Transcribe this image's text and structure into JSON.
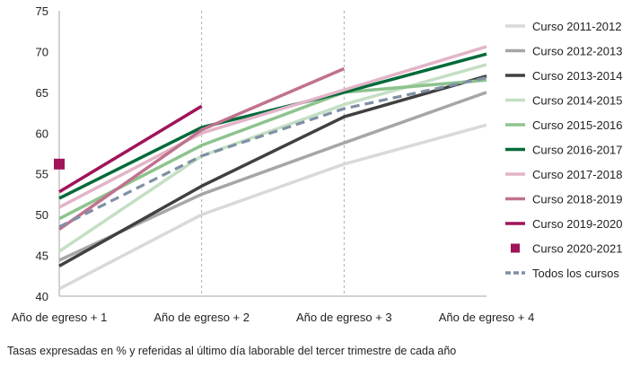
{
  "chart_data": {
    "type": "line",
    "categories": [
      "Año de egreso + 1",
      "Año de egreso + 2",
      "Año de egreso + 3",
      "Año de egreso + 4"
    ],
    "ylim": [
      40,
      75
    ],
    "yticks": [
      40,
      45,
      50,
      55,
      60,
      65,
      70,
      75
    ],
    "grid": "vertical dashed",
    "legend_position": "right",
    "note": "Tasas expresadas en % y referidas al último día laborable del tercer trimestre de cada año",
    "series": [
      {
        "name": "Curso 2011-2012",
        "color": "#d9d9d9",
        "style": "line",
        "values": [
          40.9,
          50.0,
          56.2,
          61.0
        ]
      },
      {
        "name": "Curso 2012-2013",
        "color": "#a6a6a6",
        "style": "line",
        "values": [
          44.4,
          52.5,
          58.8,
          65.0
        ]
      },
      {
        "name": "Curso 2013-2014",
        "color": "#404040",
        "style": "line",
        "values": [
          43.7,
          53.5,
          62.0,
          67.0
        ]
      },
      {
        "name": "Curso 2014-2015",
        "color": "#c4dfc4",
        "style": "line",
        "values": [
          45.5,
          57.2,
          63.5,
          68.4
        ]
      },
      {
        "name": "Curso 2015-2016",
        "color": "#8ec38e",
        "style": "line",
        "values": [
          49.5,
          58.5,
          65.0,
          66.5
        ]
      },
      {
        "name": "Curso 2016-2017",
        "color": "#006a3a",
        "style": "line",
        "values": [
          52.0,
          60.7,
          65.0,
          69.7
        ]
      },
      {
        "name": "Curso 2017-2018",
        "color": "#e3b4c8",
        "style": "line",
        "values": [
          50.9,
          60.0,
          65.3,
          70.6
        ]
      },
      {
        "name": "Curso 2018-2019",
        "color": "#c0728e",
        "style": "line",
        "values": [
          48.2,
          60.4,
          67.9,
          null
        ]
      },
      {
        "name": "Curso 2019-2020",
        "color": "#a0145a",
        "style": "line",
        "values": [
          52.8,
          63.3,
          null,
          null
        ]
      },
      {
        "name": "Curso 2020-2021",
        "color": "#a0145a",
        "style": "marker",
        "values": [
          56.2,
          null,
          null,
          null
        ]
      },
      {
        "name": "Todos los cursos",
        "color": "#7f8fa6",
        "style": "dashed",
        "values": [
          48.5,
          57.2,
          63.0,
          66.8
        ]
      }
    ]
  }
}
